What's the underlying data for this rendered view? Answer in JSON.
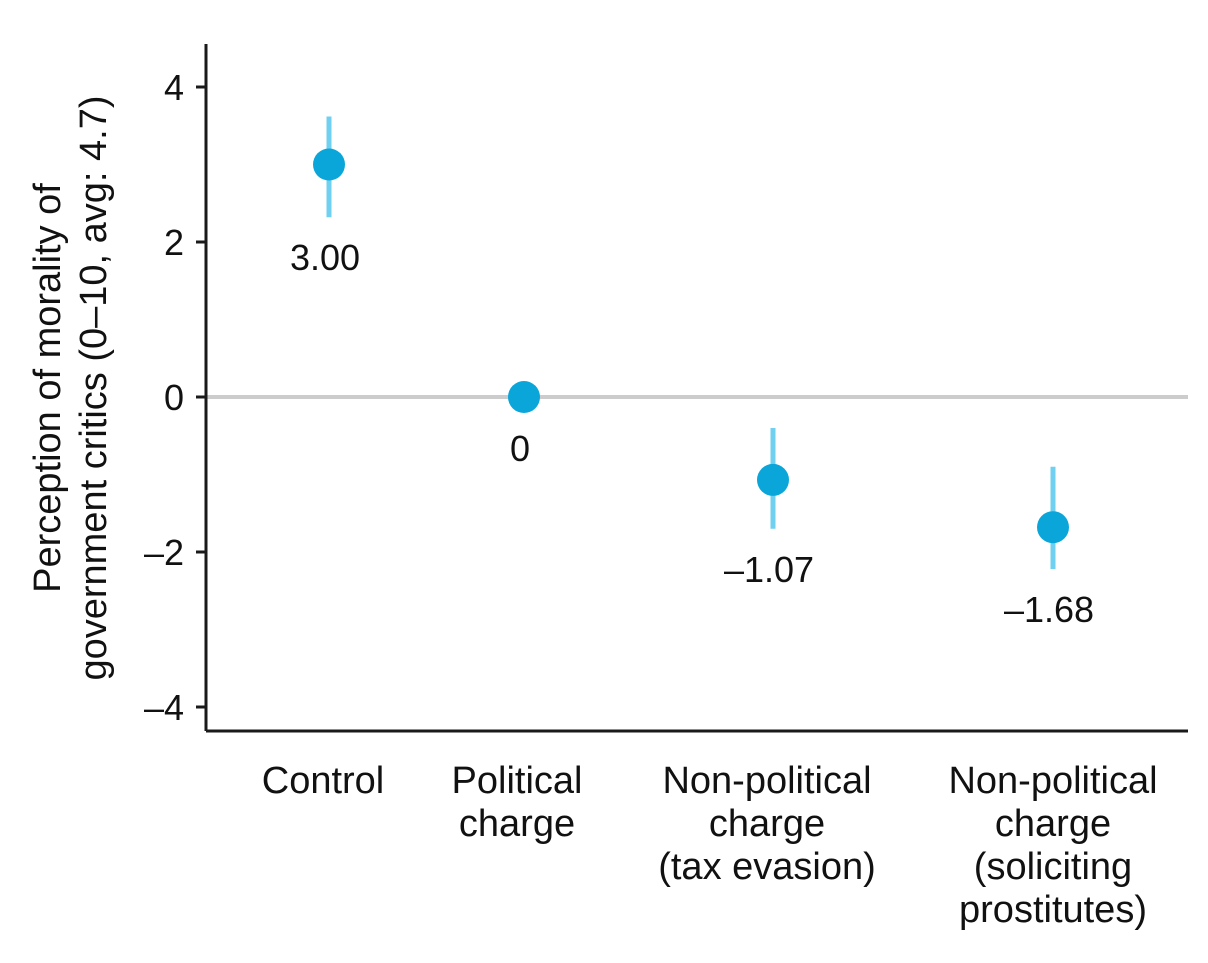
{
  "chart_data": {
    "type": "scatter",
    "title": "",
    "ylabel_lines": [
      "Perception of morality of",
      "government critics (0–10, avg: 4.7)"
    ],
    "xlabel": "",
    "ylim": [
      -4.4,
      4.5
    ],
    "yticks": [
      4,
      2,
      0,
      -2,
      -4
    ],
    "ytick_labels": [
      "4",
      "2",
      "0",
      "–2",
      "–4"
    ],
    "grid": false,
    "reference_line": 0,
    "colors": {
      "point": "#0aa6d9",
      "error_bar": "#6fd0f2",
      "reference_line": "#cccccc"
    },
    "categories": [
      {
        "label_lines": [
          "Control"
        ],
        "value": 3.0,
        "ci": [
          2.32,
          3.62
        ],
        "label": "3.00"
      },
      {
        "label_lines": [
          "Political",
          "charge"
        ],
        "value": 0.0,
        "ci": null,
        "label": "0"
      },
      {
        "label_lines": [
          "Non-political",
          "charge",
          "(tax evasion)"
        ],
        "value": -1.07,
        "ci": [
          -1.7,
          -0.4
        ],
        "label": "–1.07"
      },
      {
        "label_lines": [
          "Non-political",
          "charge",
          "(soliciting",
          "prostitutes)"
        ],
        "value": -1.68,
        "ci": [
          -2.22,
          -0.9
        ],
        "label": "–1.68"
      }
    ]
  }
}
